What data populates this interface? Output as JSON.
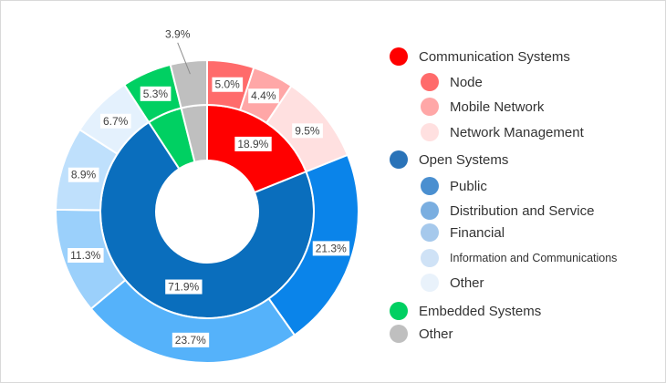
{
  "chart_data": {
    "type": "donut",
    "inner_ring": [
      {
        "name": "Communication Systems",
        "value": 18.9,
        "label": "18.9%",
        "color": "#ff0000"
      },
      {
        "name": "Open Systems",
        "value": 71.9,
        "label": "71.9%",
        "color": "#0a6ebd"
      },
      {
        "name": "Embedded Systems",
        "value": 5.3,
        "label": "",
        "color": "#00d062"
      },
      {
        "name": "Other",
        "value": 3.9,
        "label": "",
        "color": "#bfbfbf"
      }
    ],
    "outer_ring": [
      {
        "name": "Node",
        "group": "Communication Systems",
        "value": 5.0,
        "label": "5.0%",
        "color": "#ff6b6b"
      },
      {
        "name": "Mobile Network",
        "group": "Communication Systems",
        "value": 4.4,
        "label": "4.4%",
        "color": "#ffa7a7"
      },
      {
        "name": "Network Management",
        "group": "Communication Systems",
        "value": 9.5,
        "label": "9.5%",
        "color": "#ffe0e0"
      },
      {
        "name": "Public",
        "group": "Open Systems",
        "value": 21.3,
        "label": "21.3%",
        "color": "#0a84ea"
      },
      {
        "name": "Distribution and Service",
        "group": "Open Systems",
        "value": 23.7,
        "label": "23.7%",
        "color": "#55b2fa"
      },
      {
        "name": "Financial",
        "group": "Open Systems",
        "value": 11.3,
        "label": "11.3%",
        "color": "#9bd0fb"
      },
      {
        "name": "Information and Communications",
        "group": "Open Systems",
        "value": 8.9,
        "label": "8.9%",
        "color": "#bfe0fc"
      },
      {
        "name": "Other",
        "group": "Open Systems",
        "value": 6.7,
        "label": "6.7%",
        "color": "#e4f1fd"
      },
      {
        "name": "Embedded Systems",
        "group": "Embedded Systems",
        "value": 5.3,
        "label": "5.3%",
        "color": "#00d062"
      },
      {
        "name": "Other",
        "group": "Other",
        "value": 3.9,
        "label": "3.9%",
        "color": "#bfbfbf"
      }
    ],
    "legend": [
      {
        "label": "Communication Systems",
        "color": "#ff0000",
        "level": 0
      },
      {
        "label": "Node",
        "color": "#ff6b6b",
        "level": 1
      },
      {
        "label": "Mobile Network",
        "color": "#ffa7a7",
        "level": 1
      },
      {
        "label": "Network Management",
        "color": "#ffe0e0",
        "level": 1
      },
      {
        "label": "Open Systems",
        "color": "#2a73b8",
        "level": 0
      },
      {
        "label": "Public",
        "color": "#4a8fd0",
        "level": 1
      },
      {
        "label": "Distribution and Service",
        "color": "#7aaee0",
        "level": 1
      },
      {
        "label": "Financial",
        "color": "#a6c9ec",
        "level": 1
      },
      {
        "label": "Information and Communications",
        "color": "#cfe2f6",
        "level": 1
      },
      {
        "label": "Other",
        "color": "#e9f2fb",
        "level": 1
      },
      {
        "label": "Embedded Systems",
        "color": "#00d062",
        "level": 0
      },
      {
        "label": "Other",
        "color": "#bfbfbf",
        "level": 0
      }
    ],
    "legend_position": "right"
  }
}
